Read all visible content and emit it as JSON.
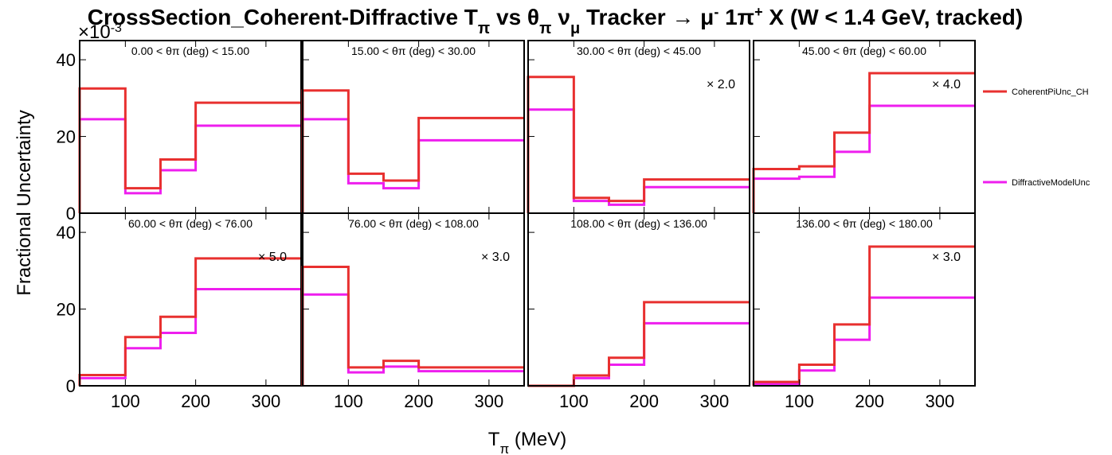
{
  "chart_data": {
    "type": "line",
    "drawstyle": "steps",
    "title": "CrossSection_Coherent-Diffractive Tπ vs θπ νμ Tracker → μ⁻ 1π⁺ X (W < 1.4 GeV, tracked)",
    "title_parts": {
      "prefix": "CrossSection_Coherent-Diffractive T",
      "sub_pi": "π",
      "vs": " vs ",
      "theta": "θ",
      "nu": "ν",
      "mu": "μ",
      "tracker": " Tracker ",
      "arrow": "→",
      "muon": " μ",
      "minus": "-",
      "one_pi": " 1π",
      "plus": "+",
      "tail": " X  (W < 1.4 GeV, tracked)"
    },
    "xlabel": "Tπ (MeV)",
    "xlabel_parts": {
      "main": "T",
      "sub": "π",
      "rest": " (MeV)"
    },
    "ylabel": "Fractional Uncertainty",
    "y_multiplier": "×10⁻³",
    "y_multiplier_parts": {
      "base": "×10",
      "exp": "-3"
    },
    "xlim": [
      35,
      350
    ],
    "ylim": [
      0,
      45
    ],
    "xticks": [
      100,
      200,
      300
    ],
    "yticks": [
      0,
      20,
      40
    ],
    "bin_edges": [
      35,
      100,
      150,
      200,
      350
    ],
    "grid": false,
    "legend_position": "right",
    "series": [
      {
        "name": "CoherentPiUnc_CH",
        "color": "#e8302f"
      },
      {
        "name": "DiffractiveModelUnc",
        "color": "#ee1eee"
      }
    ],
    "panels": [
      {
        "label": "0.00 < θπ (deg) < 15.00",
        "scale": "",
        "values": [
          [
            32.5,
            6.5,
            14.0,
            28.8
          ],
          [
            24.5,
            5.2,
            11.2,
            22.8
          ]
        ]
      },
      {
        "label": "15.00 < θπ (deg) < 30.00",
        "scale": "",
        "values": [
          [
            32.0,
            10.3,
            8.5,
            24.8
          ],
          [
            24.5,
            7.8,
            6.5,
            19.0
          ]
        ]
      },
      {
        "label": "30.00 < θπ (deg) < 45.00",
        "scale": "× 2.0",
        "values": [
          [
            35.5,
            4.0,
            3.2,
            8.8
          ],
          [
            27.0,
            3.2,
            2.2,
            6.8
          ]
        ]
      },
      {
        "label": "45.00 < θπ (deg) < 60.00",
        "scale": "× 4.0",
        "values": [
          [
            11.5,
            12.2,
            21.0,
            36.5
          ],
          [
            9.0,
            9.5,
            16.0,
            28.0
          ]
        ]
      },
      {
        "label": "60.00 < θπ (deg) < 76.00",
        "scale": "× 5.0",
        "values": [
          [
            2.8,
            12.7,
            18.0,
            33.2
          ],
          [
            2.0,
            9.8,
            13.8,
            25.2
          ]
        ]
      },
      {
        "label": "76.00 < θπ (deg) < 108.00",
        "scale": "× 3.0",
        "values": [
          [
            31.0,
            4.8,
            6.5,
            4.8
          ],
          [
            23.8,
            3.5,
            5.0,
            3.8
          ]
        ]
      },
      {
        "label": "108.00 < θπ (deg) < 136.00",
        "scale": "",
        "values": [
          [
            0.0,
            2.7,
            7.3,
            21.8
          ],
          [
            0.0,
            2.0,
            5.5,
            16.3
          ]
        ]
      },
      {
        "label": "136.00 < θπ (deg) < 180.00",
        "scale": "× 3.0",
        "values": [
          [
            1.0,
            5.5,
            16.0,
            36.3
          ],
          [
            0.5,
            4.0,
            12.0,
            23.0
          ]
        ]
      }
    ]
  }
}
